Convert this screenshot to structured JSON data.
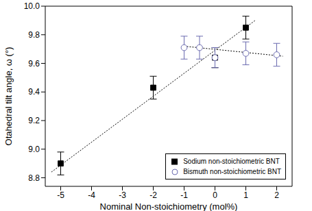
{
  "chart_data": {
    "type": "scatter",
    "xlabel": "Nominal Non-stoichiometry (mol%)",
    "ylabel": "Otahedral tilt angle, ω (°)",
    "xlim": [
      -5.5,
      2.5
    ],
    "xticks": [
      -5,
      -4,
      -3,
      -2,
      -1,
      0,
      1,
      2
    ],
    "ylim": [
      8.74,
      10.0
    ],
    "yticks": [
      8.8,
      {
        "value": 9,
        "label": "9.0"
      },
      9.2,
      9.4,
      9.6,
      9.8,
      {
        "value": 10,
        "label": "10.0"
      }
    ],
    "legend": "lower right",
    "series": [
      {
        "name": "Sodium non-stoichiometric BNT",
        "color": "#000000",
        "marker": "square",
        "x": [
          -5,
          -2,
          0,
          1
        ],
        "values": [
          8.9,
          9.43,
          9.64,
          9.85
        ],
        "errors": [
          0.08,
          0.08,
          0.07,
          0.08
        ],
        "fit": {
          "x": [
            -5.3,
            1.3
          ],
          "y": [
            8.84,
            9.9
          ],
          "line_style": "dotted"
        }
      },
      {
        "name": "Bismuth non-stoichiometric BNT",
        "color": "#6b6bb0",
        "marker": "open circle",
        "x": [
          -1,
          -0.5,
          0,
          1,
          2
        ],
        "values": [
          9.71,
          9.71,
          9.64,
          9.67,
          9.66
        ],
        "errors": [
          0.08,
          0.08,
          0.07,
          0.08,
          0.08
        ],
        "fit": {
          "x": [
            -1,
            2.2
          ],
          "y": [
            9.72,
            9.65
          ],
          "line_style": "dotted"
        }
      }
    ]
  }
}
